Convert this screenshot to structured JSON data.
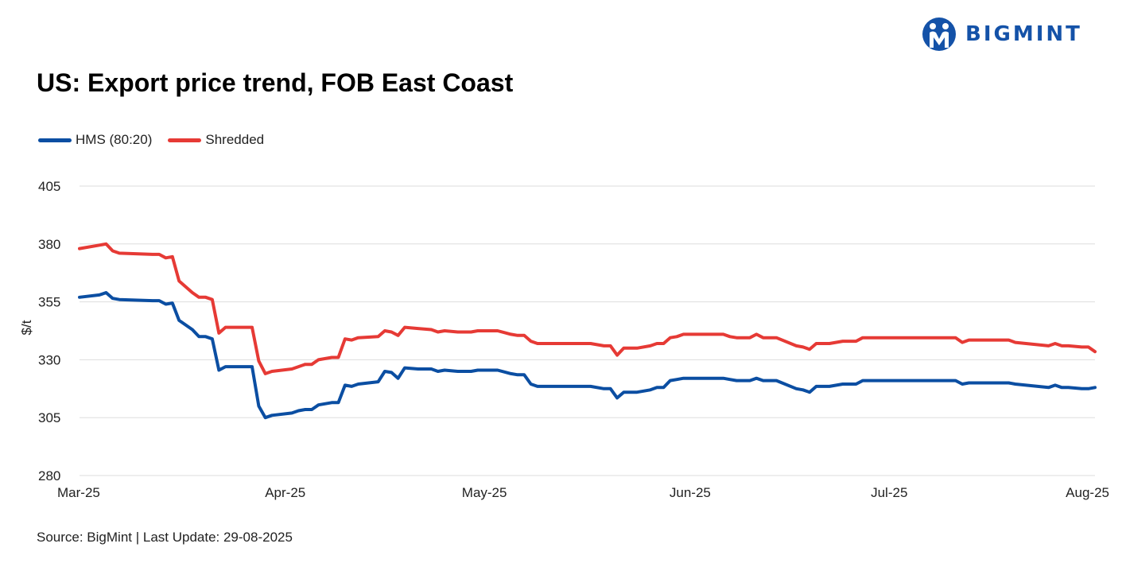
{
  "brand": {
    "name": "BIGMINT",
    "color": "#1452a8"
  },
  "header": {
    "title": "US: Export price trend, FOB East Coast"
  },
  "footer": {
    "source": "Source: BigMint | Last Update: 29-08-2025"
  },
  "colors": {
    "hms": "#0b4ea2",
    "shredded": "#e63a35",
    "grid": "#dddddd"
  },
  "chart_data": {
    "type": "line",
    "ylabel": "$/t",
    "ylim": [
      280,
      405
    ],
    "yticks": [
      280,
      305,
      330,
      355,
      380,
      405
    ],
    "xlim": [
      "2025-03-01",
      "2025-08-01"
    ],
    "xticks": [
      {
        "date": "2025-03-01",
        "label": "Mar-25"
      },
      {
        "date": "2025-04-01",
        "label": "Apr-25"
      },
      {
        "date": "2025-05-01",
        "label": "May-25"
      },
      {
        "date": "2025-06-01",
        "label": "Jun-25"
      },
      {
        "date": "2025-07-01",
        "label": "Jul-25"
      },
      {
        "date": "2025-08-01",
        "label": "Aug-25"
      }
    ],
    "grid": true,
    "legend": "top-left",
    "series": [
      {
        "name": "HMS (80:20)",
        "color": "#0b4ea2",
        "points": [
          [
            "2025-03-01",
            357
          ],
          [
            "2025-03-04",
            358
          ],
          [
            "2025-03-05",
            359
          ],
          [
            "2025-03-06",
            356.5
          ],
          [
            "2025-03-07",
            356
          ],
          [
            "2025-03-12",
            355.5
          ],
          [
            "2025-03-13",
            355.5
          ],
          [
            "2025-03-14",
            354
          ],
          [
            "2025-03-15",
            354.5
          ],
          [
            "2025-03-16",
            347
          ],
          [
            "2025-03-18",
            343
          ],
          [
            "2025-03-19",
            340
          ],
          [
            "2025-03-20",
            340
          ],
          [
            "2025-03-21",
            339
          ],
          [
            "2025-03-22",
            325.5
          ],
          [
            "2025-03-23",
            327
          ],
          [
            "2025-03-24",
            327
          ],
          [
            "2025-03-26",
            327
          ],
          [
            "2025-03-27",
            327
          ],
          [
            "2025-03-28",
            310
          ],
          [
            "2025-03-29",
            305
          ],
          [
            "2025-03-30",
            306
          ],
          [
            "2025-04-02",
            307
          ],
          [
            "2025-04-03",
            308
          ],
          [
            "2025-04-04",
            308.5
          ],
          [
            "2025-04-05",
            308.5
          ],
          [
            "2025-04-06",
            310.5
          ],
          [
            "2025-04-08",
            311.5
          ],
          [
            "2025-04-09",
            311.5
          ],
          [
            "2025-04-10",
            319
          ],
          [
            "2025-04-11",
            318.5
          ],
          [
            "2025-04-12",
            319.5
          ],
          [
            "2025-04-15",
            320.5
          ],
          [
            "2025-04-16",
            325
          ],
          [
            "2025-04-17",
            324.5
          ],
          [
            "2025-04-18",
            322
          ],
          [
            "2025-04-19",
            326.5
          ],
          [
            "2025-04-21",
            326
          ],
          [
            "2025-04-23",
            326
          ],
          [
            "2025-04-24",
            325
          ],
          [
            "2025-04-25",
            325.5
          ],
          [
            "2025-04-27",
            325
          ],
          [
            "2025-04-29",
            325
          ],
          [
            "2025-04-30",
            325.5
          ],
          [
            "2025-05-03",
            325.5
          ],
          [
            "2025-05-05",
            324
          ],
          [
            "2025-05-06",
            323.5
          ],
          [
            "2025-05-07",
            323.5
          ],
          [
            "2025-05-08",
            319.5
          ],
          [
            "2025-05-09",
            318.5
          ],
          [
            "2025-05-15",
            318.5
          ],
          [
            "2025-05-17",
            318.5
          ],
          [
            "2025-05-19",
            317.5
          ],
          [
            "2025-05-20",
            317.5
          ],
          [
            "2025-05-21",
            313.5
          ],
          [
            "2025-05-22",
            316
          ],
          [
            "2025-05-24",
            316
          ],
          [
            "2025-05-26",
            317
          ],
          [
            "2025-05-27",
            318
          ],
          [
            "2025-05-28",
            318
          ],
          [
            "2025-05-29",
            321
          ],
          [
            "2025-05-30",
            321.5
          ],
          [
            "2025-05-31",
            322
          ],
          [
            "2025-06-06",
            322
          ],
          [
            "2025-06-07",
            321.5
          ],
          [
            "2025-06-08",
            321
          ],
          [
            "2025-06-10",
            321
          ],
          [
            "2025-06-11",
            322
          ],
          [
            "2025-06-12",
            321
          ],
          [
            "2025-06-14",
            321
          ],
          [
            "2025-06-17",
            317.5
          ],
          [
            "2025-06-18",
            317
          ],
          [
            "2025-06-19",
            316
          ],
          [
            "2025-06-20",
            318.5
          ],
          [
            "2025-06-22",
            318.5
          ],
          [
            "2025-06-24",
            319.5
          ],
          [
            "2025-06-26",
            319.5
          ],
          [
            "2025-06-27",
            321
          ],
          [
            "2025-07-11",
            321
          ],
          [
            "2025-07-12",
            319.5
          ],
          [
            "2025-07-13",
            320
          ],
          [
            "2025-07-19",
            320
          ],
          [
            "2025-07-20",
            319.5
          ],
          [
            "2025-07-25",
            318
          ],
          [
            "2025-07-26",
            319
          ],
          [
            "2025-07-27",
            318
          ],
          [
            "2025-07-28",
            318
          ],
          [
            "2025-07-30",
            317.5
          ],
          [
            "2025-07-31",
            317.5
          ],
          [
            "2025-08-01",
            318
          ]
        ]
      },
      {
        "name": "Shredded",
        "color": "#e63a35",
        "points": [
          [
            "2025-03-01",
            378
          ],
          [
            "2025-03-04",
            379.5
          ],
          [
            "2025-03-05",
            380
          ],
          [
            "2025-03-06",
            377
          ],
          [
            "2025-03-07",
            376
          ],
          [
            "2025-03-12",
            375.5
          ],
          [
            "2025-03-13",
            375.5
          ],
          [
            "2025-03-14",
            374
          ],
          [
            "2025-03-15",
            374.5
          ],
          [
            "2025-03-16",
            364
          ],
          [
            "2025-03-18",
            359
          ],
          [
            "2025-03-19",
            357
          ],
          [
            "2025-03-20",
            357
          ],
          [
            "2025-03-21",
            356
          ],
          [
            "2025-03-22",
            341.5
          ],
          [
            "2025-03-23",
            344
          ],
          [
            "2025-03-24",
            344
          ],
          [
            "2025-03-26",
            344
          ],
          [
            "2025-03-27",
            344
          ],
          [
            "2025-03-28",
            329.5
          ],
          [
            "2025-03-29",
            324
          ],
          [
            "2025-03-30",
            325
          ],
          [
            "2025-04-02",
            326
          ],
          [
            "2025-04-03",
            327
          ],
          [
            "2025-04-04",
            328
          ],
          [
            "2025-04-05",
            328
          ],
          [
            "2025-04-06",
            330
          ],
          [
            "2025-04-08",
            331
          ],
          [
            "2025-04-09",
            331
          ],
          [
            "2025-04-10",
            339
          ],
          [
            "2025-04-11",
            338.5
          ],
          [
            "2025-04-12",
            339.5
          ],
          [
            "2025-04-15",
            340
          ],
          [
            "2025-04-16",
            342.5
          ],
          [
            "2025-04-17",
            342
          ],
          [
            "2025-04-18",
            340.5
          ],
          [
            "2025-04-19",
            344
          ],
          [
            "2025-04-21",
            343.5
          ],
          [
            "2025-04-23",
            343
          ],
          [
            "2025-04-24",
            342
          ],
          [
            "2025-04-25",
            342.5
          ],
          [
            "2025-04-27",
            342
          ],
          [
            "2025-04-29",
            342
          ],
          [
            "2025-04-30",
            342.5
          ],
          [
            "2025-05-03",
            342.5
          ],
          [
            "2025-05-05",
            341
          ],
          [
            "2025-05-06",
            340.5
          ],
          [
            "2025-05-07",
            340.5
          ],
          [
            "2025-05-08",
            338
          ],
          [
            "2025-05-09",
            337
          ],
          [
            "2025-05-15",
            337
          ],
          [
            "2025-05-17",
            337
          ],
          [
            "2025-05-19",
            336
          ],
          [
            "2025-05-20",
            336
          ],
          [
            "2025-05-21",
            332
          ],
          [
            "2025-05-22",
            335
          ],
          [
            "2025-05-24",
            335
          ],
          [
            "2025-05-26",
            336
          ],
          [
            "2025-05-27",
            337
          ],
          [
            "2025-05-28",
            337
          ],
          [
            "2025-05-29",
            339.5
          ],
          [
            "2025-05-30",
            340
          ],
          [
            "2025-05-31",
            341
          ],
          [
            "2025-06-06",
            341
          ],
          [
            "2025-06-07",
            340
          ],
          [
            "2025-06-08",
            339.5
          ],
          [
            "2025-06-10",
            339.5
          ],
          [
            "2025-06-11",
            341
          ],
          [
            "2025-06-12",
            339.5
          ],
          [
            "2025-06-14",
            339.5
          ],
          [
            "2025-06-17",
            336
          ],
          [
            "2025-06-18",
            335.5
          ],
          [
            "2025-06-19",
            334.5
          ],
          [
            "2025-06-20",
            337
          ],
          [
            "2025-06-22",
            337
          ],
          [
            "2025-06-24",
            338
          ],
          [
            "2025-06-26",
            338
          ],
          [
            "2025-06-27",
            339.5
          ],
          [
            "2025-07-11",
            339.5
          ],
          [
            "2025-07-12",
            337.5
          ],
          [
            "2025-07-13",
            338.5
          ],
          [
            "2025-07-19",
            338.5
          ],
          [
            "2025-07-20",
            337.5
          ],
          [
            "2025-07-25",
            336
          ],
          [
            "2025-07-26",
            337
          ],
          [
            "2025-07-27",
            336
          ],
          [
            "2025-07-28",
            336
          ],
          [
            "2025-07-30",
            335.5
          ],
          [
            "2025-07-31",
            335.5
          ],
          [
            "2025-08-01",
            333.5
          ]
        ]
      }
    ]
  }
}
